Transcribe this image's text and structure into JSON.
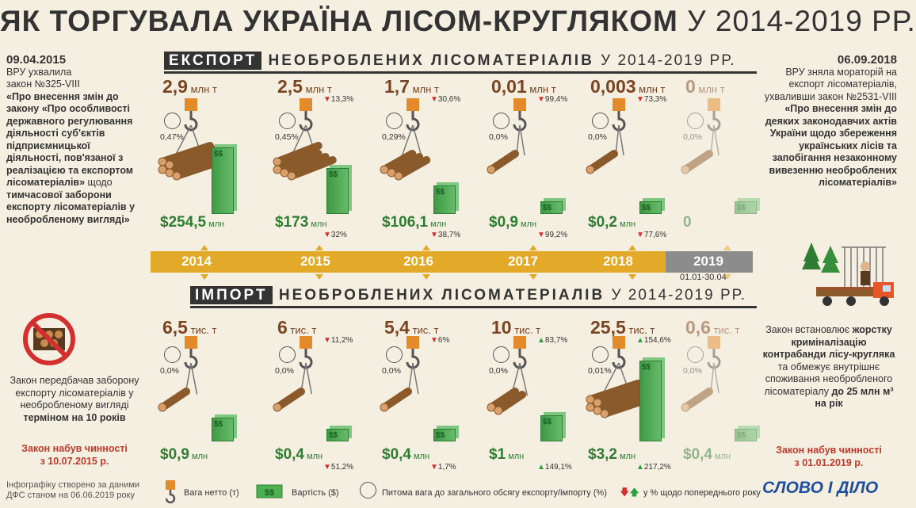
{
  "title": {
    "bold": "ЯК ТОРГУВАЛА УКРАЇНА ЛІСОМ-КРУГЛЯКОМ",
    "light": "У 2014-2019 РР."
  },
  "export_head": {
    "tag": "ЕКСПОРТ",
    "bold": "НЕОБРОБЛЕНИХ ЛІСОМАТЕРІАЛІВ",
    "light": "У 2014-2019 РР."
  },
  "import_head": {
    "tag": "ІМПОРТ",
    "bold": "НЕОБРОБЛЕНИХ ЛІСОМАТЕРІАЛІВ",
    "light": "У 2014-2019 РР."
  },
  "left_panel": {
    "date": "09.04.2015",
    "line1": "ВРУ ухвалила",
    "line2": "закон №325-VIII",
    "law_bold": "«Про внесення змін до закону «Про особливості державного регулювання діяльності суб'єктів підприємницької діяльності, пов'язаної з реалізацією та експортом лісоматеріалів»",
    "law_normal": "щодо",
    "law_bold2": "тимчасової заборони експорту лісоматеріалів у необробленому вигляді»",
    "provided": "Закон передбачав заборону експорту лісоматеріалів у необробленому вигляді",
    "provided_bold": "терміном на 10 років",
    "effective1": "Закон набув чинності",
    "effective2": "з 10.07.2015 р."
  },
  "right_panel": {
    "date": "06.09.2018",
    "text": "ВРУ зняла мораторій на експорт лісоматеріалів, ухваливши закон №2531-VIII",
    "law_bold": "«Про внесення змін до деяких законодавчих актів України щодо збереження українських лісів та запобігання незаконному вивезенню необроблених лісоматеріалів»",
    "law2_a": "Закон встановлює",
    "law2_bold": "жорстку криміналізацію контрабанди лісу-кругляка",
    "law2_b": "та обмежує внутрішнє споживання необробленого лісоматеріалу",
    "law2_bold2": "до 25 млн м³ на рік",
    "effective1": "Закон набув чинності",
    "effective2": "з 01.01.2019 р."
  },
  "timeline": {
    "years": [
      "2014",
      "2015",
      "2016",
      "2017",
      "2018",
      "2019"
    ],
    "note_2019": "01.01-30.04"
  },
  "legend": {
    "weight": "Вага нетто (т)",
    "value": "Вартість ($)",
    "share": "Питома вага до загального обсягу експорту/імпорту (%)",
    "change": "у % щодо попереднього року"
  },
  "footer": {
    "line1": "Інфографіку створено за даними",
    "line2": "ДФС станом на 06.06.2019 року"
  },
  "logo": "СЛОВО І ДІЛО",
  "colors": {
    "gold": "#e3a928",
    "brown": "#7a4421",
    "green": "#2e7d32",
    "red": "#d32f2f",
    "gray": "#8c8c8c"
  },
  "chart_data": [
    {
      "type": "bar",
      "title": "ЕКСПОРТ НЕОБРОБЛЕНИХ ЛІСОМАТЕРІАЛІВ У 2014-2019 РР.",
      "categories": [
        "2014",
        "2015",
        "2016",
        "2017",
        "2018",
        "2019"
      ],
      "series": [
        {
          "name": "Вага нетто (т)",
          "values": [
            2.9,
            2.5,
            1.7,
            0.01,
            0.003,
            0
          ],
          "unit": "млн т",
          "labels": [
            "2,9",
            "2,5",
            "1,7",
            "0,01",
            "0,003",
            "0"
          ],
          "change": [
            "",
            "13,3%",
            "30,6%",
            "99,4%",
            "73,3%",
            ""
          ],
          "change_dir": [
            "",
            "down",
            "down",
            "down",
            "down",
            ""
          ]
        },
        {
          "name": "Вартість ($)",
          "values": [
            254.5,
            173,
            106.1,
            0.9,
            0.2,
            0
          ],
          "unit": "млн",
          "labels": [
            "$254,5",
            "$173",
            "$106,1",
            "$0,9",
            "$0,2",
            "0"
          ],
          "change": [
            "",
            "32%",
            "38,7%",
            "99,2%",
            "77,6%",
            ""
          ],
          "change_dir": [
            "",
            "down",
            "down",
            "down",
            "down",
            ""
          ]
        },
        {
          "name": "Питома вага",
          "values": [
            0.47,
            0.45,
            0.29,
            0.0,
            0.0,
            0.0
          ],
          "labels": [
            "0,47%",
            "0,45%",
            "0,29%",
            "0,0%",
            "0,0%",
            "0,0%"
          ]
        }
      ]
    },
    {
      "type": "bar",
      "title": "ІМПОРТ НЕОБРОБЛЕНИХ ЛІСОМАТЕРІАЛІВ У 2014-2019 РР.",
      "categories": [
        "2014",
        "2015",
        "2016",
        "2017",
        "2018",
        "2019"
      ],
      "series": [
        {
          "name": "Вага нетто (т)",
          "values": [
            6.5,
            6,
            5.4,
            10,
            25.5,
            0.6
          ],
          "unit": "тис. т",
          "labels": [
            "6,5",
            "6",
            "5,4",
            "10",
            "25,5",
            "0,6"
          ],
          "change": [
            "",
            "11,2%",
            "6%",
            "83,7%",
            "154,6%",
            ""
          ],
          "change_dir": [
            "",
            "down",
            "down",
            "up",
            "up",
            ""
          ]
        },
        {
          "name": "Вартість ($)",
          "values": [
            0.9,
            0.4,
            0.4,
            1,
            3.2,
            0.4
          ],
          "unit": "млн",
          "labels": [
            "$0,9",
            "$0,4",
            "$0,4",
            "$1",
            "$3,2",
            "$0,4"
          ],
          "change": [
            "",
            "51,2%",
            "1,7%",
            "149,1%",
            "217,2%",
            ""
          ],
          "change_dir": [
            "",
            "down",
            "down",
            "up",
            "up",
            ""
          ]
        },
        {
          "name": "Питома вага",
          "values": [
            0.0,
            0.0,
            0.0,
            0.0,
            0.01,
            0.0
          ],
          "labels": [
            "0,0%",
            "0,0%",
            "0,0%",
            "0,0%",
            "0,01%",
            "0,0%"
          ]
        }
      ]
    }
  ]
}
